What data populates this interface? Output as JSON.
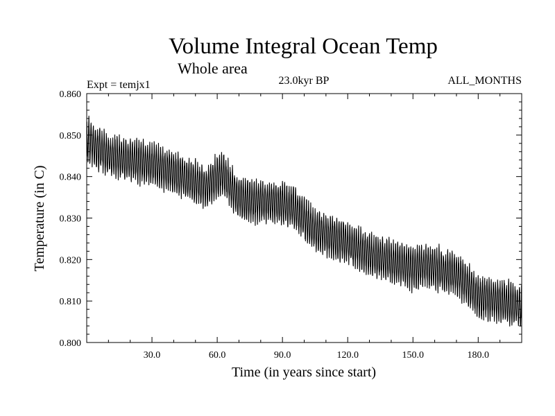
{
  "chart_data": {
    "type": "line",
    "title": "Volume Integral Ocean Temp",
    "subtitle": "Whole area",
    "experiment": "Expt = temjx1",
    "period": "23.0kyr BP",
    "months": "ALL_MONTHS",
    "xlabel": "Time (in years since start)",
    "ylabel": "Temperature (in C)",
    "xlim": [
      0,
      200
    ],
    "ylim": [
      0.8,
      0.86
    ],
    "x_ticks": [
      30,
      60,
      90,
      120,
      150,
      180
    ],
    "x_tick_labels": [
      "30.0",
      "60.0",
      "90.0",
      "120.0",
      "150.0",
      "180.0"
    ],
    "y_ticks": [
      0.8,
      0.81,
      0.82,
      0.83,
      0.84,
      0.85,
      0.86
    ],
    "y_tick_labels": [
      "0.800",
      "0.810",
      "0.820",
      "0.830",
      "0.840",
      "0.850",
      "0.860"
    ],
    "grid": false,
    "series": [
      {
        "name": "Temperature",
        "color": "#000000",
        "seasonal_amplitude": 0.0045,
        "samples_per_year": 12,
        "trend_x": [
          0,
          5,
          10,
          20,
          30,
          40,
          50,
          55,
          60,
          63,
          65,
          70,
          75,
          80,
          90,
          95,
          100,
          105,
          110,
          120,
          130,
          140,
          150,
          155,
          160,
          165,
          170,
          175,
          180,
          190,
          200
        ],
        "trend_y": [
          0.849,
          0.847,
          0.845,
          0.844,
          0.843,
          0.841,
          0.8385,
          0.8375,
          0.84,
          0.8405,
          0.8385,
          0.835,
          0.834,
          0.834,
          0.8335,
          0.8325,
          0.83,
          0.827,
          0.826,
          0.824,
          0.821,
          0.8195,
          0.818,
          0.8185,
          0.818,
          0.817,
          0.8165,
          0.814,
          0.811,
          0.81,
          0.8085
        ]
      }
    ]
  }
}
